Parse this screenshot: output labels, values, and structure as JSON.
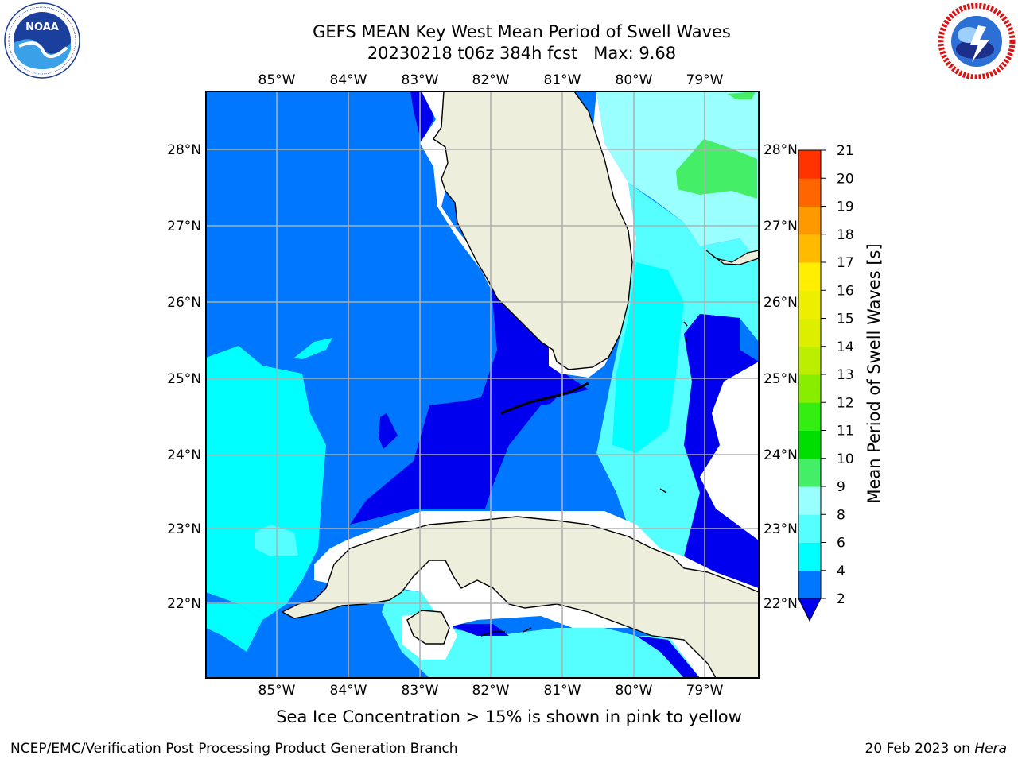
{
  "title": {
    "line1": "GEFS MEAN Key West Mean Period of Swell Waves",
    "line2": "20230218 t06z 384h fcst   Max: 9.68"
  },
  "caption": "Sea Ice Concentration > 15% is shown in pink to yellow",
  "footer": {
    "left": "NCEP/EMC/Verification Post Processing Product Generation Branch",
    "right_date": "20 Feb 2023 on ",
    "right_host": "Hera"
  },
  "logos": {
    "left": "noaa-logo",
    "right": "nws-logo"
  },
  "map": {
    "lon_labels": [
      "85°W",
      "84°W",
      "83°W",
      "82°W",
      "81°W",
      "80°W",
      "79°W"
    ],
    "lat_labels": [
      "28°N",
      "27°N",
      "26°N",
      "25°N",
      "24°N",
      "23°N",
      "22°N"
    ],
    "colors": {
      "land": "#eeeedd",
      "deep": "#0000ee",
      "blue": "#0077ff",
      "cyan": "#00ffff",
      "light_cyan": "#55ffff",
      "pale_cyan": "#99ffff",
      "green": "#44ee66"
    }
  },
  "colorbar": {
    "label": "Mean Period of Swell Waves [s]",
    "ticks": [
      "2",
      "4",
      "6",
      "8",
      "9",
      "10",
      "11",
      "12",
      "13",
      "14",
      "15",
      "16",
      "17",
      "18",
      "19",
      "20",
      "21"
    ],
    "colors": [
      "#0077ff",
      "#00ffff",
      "#55ffff",
      "#99ffff",
      "#44ee66",
      "#00dd00",
      "#33ee11",
      "#88ee00",
      "#bbee00",
      "#ddee00",
      "#eeee00",
      "#ffee00",
      "#ffbb00",
      "#ff9900",
      "#ff6600",
      "#ff3300",
      "#ff0000"
    ],
    "extend_color": "#0000ee"
  },
  "chart_data": {
    "type": "heatmap",
    "title": "GEFS MEAN Key West Mean Period of Swell Waves",
    "subtitle": "20230218 t06z 384h fcst   Max: 9.68",
    "colorbar_label": "Mean Period of Swell Waves [s]",
    "colorbar_levels": [
      2,
      4,
      6,
      8,
      9,
      10,
      11,
      12,
      13,
      14,
      15,
      16,
      17,
      18,
      19,
      20,
      21
    ],
    "max": 9.68,
    "lon_range": [
      "86°W",
      "78.3°W"
    ],
    "lat_range": [
      "21°N",
      "28.8°N"
    ],
    "grid": true
  }
}
